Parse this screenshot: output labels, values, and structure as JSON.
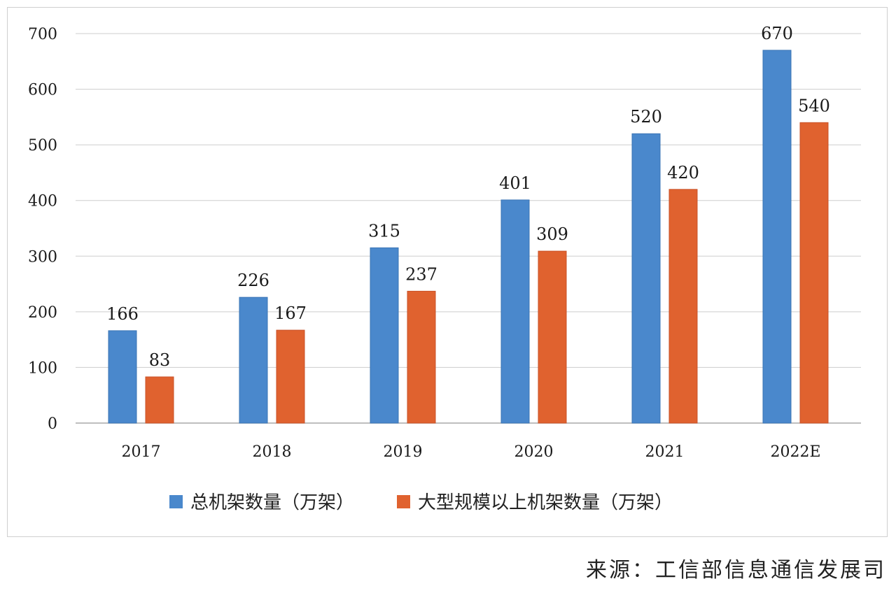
{
  "chart_data": {
    "type": "bar",
    "title": "",
    "xlabel": "",
    "ylabel": "",
    "categories": [
      "2017",
      "2018",
      "2019",
      "2020",
      "2021",
      "2022E"
    ],
    "series": [
      {
        "name": "总机架数量（万架）",
        "color": "#4a88cc",
        "values": [
          166,
          226,
          315,
          401,
          520,
          670
        ],
        "labels": [
          "166",
          "226",
          "315",
          "401",
          "520",
          "670"
        ]
      },
      {
        "name": "大型规模以上机架数量（万架）",
        "color": "#e0622f",
        "values": [
          83,
          167,
          237,
          309,
          420,
          540
        ],
        "labels": [
          "83",
          "167",
          "237",
          "309",
          "420",
          "540"
        ]
      }
    ],
    "ylim": [
      0,
      700
    ],
    "yticks": [
      "0",
      "100",
      "200",
      "300",
      "400",
      "500",
      "600",
      "700"
    ],
    "grid": true,
    "legend_position": "bottom-center"
  },
  "source": {
    "label": "来源：",
    "text": "工信部信息通信发展司"
  }
}
